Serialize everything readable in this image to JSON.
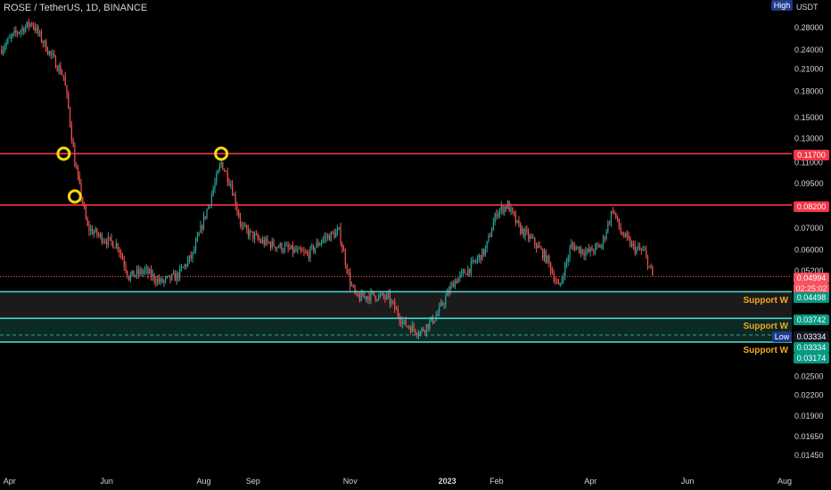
{
  "title": "ROSE / TetherUS, 1D, BINANCE",
  "price_axis": {
    "unit": "USDT",
    "high_badge": "High",
    "low_badge": "Low",
    "ticks": [
      "0.28000",
      "0.24000",
      "0.21000",
      "0.18000",
      "0.15000",
      "0.13000",
      "0.11000",
      "0.09500",
      "0.08200",
      "0.07000",
      "0.06000",
      "0.05200",
      "0.04498",
      "0.03742",
      "0.03334",
      "0.03174",
      "0.02500",
      "0.02200",
      "0.01900",
      "0.01650",
      "0.01450"
    ],
    "tags": {
      "resistance_upper": "0.11700",
      "resistance_lower": "0.08200",
      "last_price": "0.04994",
      "countdown": "02:25:02",
      "support_upper": "0.04498",
      "support_middle": "0.03742",
      "low": "0.03334",
      "low_green": "0.03334",
      "support_lower": "0.03174"
    }
  },
  "time_axis": {
    "ticks": [
      "Apr",
      "Jun",
      "Aug",
      "Sep",
      "Nov",
      "2023",
      "Feb",
      "Apr",
      "Jun",
      "Aug"
    ]
  },
  "zones": [
    "Support W",
    "Support W",
    "Support W"
  ],
  "colors": {
    "background": "#000000",
    "up_candle": "#26a69a",
    "down_candle": "#ef5350",
    "resistance_line": "#f23645",
    "support_line": "#4dd0c8",
    "highlight_circle": "#f5d90a",
    "zone_fill": "#1b1b1b",
    "zone_fill_green": "#0b2a23"
  },
  "chart_data": {
    "type": "candlestick",
    "title": "ROSE / TetherUS, 1D, BINANCE",
    "xlabel": "",
    "ylabel": "",
    "y_scale": "log",
    "ylim": [
      0.0135,
      0.33
    ],
    "x_ticks": [
      "Apr",
      "Jun",
      "Aug",
      "Sep",
      "Nov",
      "2023",
      "Feb",
      "Apr",
      "Jun",
      "Aug"
    ],
    "x_points": [
      "2022-03-26",
      "2022-04-05",
      "2022-04-15",
      "2022-04-25",
      "2022-05-05",
      "2022-05-08",
      "2022-05-12",
      "2022-05-20",
      "2022-05-30",
      "2022-06-08",
      "2022-06-15",
      "2022-06-25",
      "2022-07-05",
      "2022-07-15",
      "2022-07-25",
      "2022-08-05",
      "2022-08-12",
      "2022-08-18",
      "2022-08-25",
      "2022-09-05",
      "2022-09-15",
      "2022-09-25",
      "2022-10-05",
      "2022-10-15",
      "2022-10-25",
      "2022-11-01",
      "2022-11-05",
      "2022-11-15",
      "2022-11-25",
      "2022-12-05",
      "2022-12-15",
      "2022-12-25",
      "2023-01-05",
      "2023-01-15",
      "2023-01-25",
      "2023-02-01",
      "2023-02-08",
      "2023-02-15",
      "2023-02-25",
      "2023-03-05",
      "2023-03-12",
      "2023-03-20",
      "2023-03-30",
      "2023-04-08",
      "2023-04-15",
      "2023-04-20",
      "2023-04-28",
      "2023-05-05",
      "2023-05-10"
    ],
    "close_trace": [
      0.24,
      0.27,
      0.29,
      0.24,
      0.2,
      0.16,
      0.11,
      0.07,
      0.065,
      0.062,
      0.05,
      0.052,
      0.048,
      0.05,
      0.058,
      0.085,
      0.11,
      0.095,
      0.07,
      0.064,
      0.062,
      0.06,
      0.058,
      0.065,
      0.068,
      0.048,
      0.043,
      0.044,
      0.043,
      0.036,
      0.034,
      0.038,
      0.048,
      0.053,
      0.06,
      0.078,
      0.082,
      0.07,
      0.063,
      0.056,
      0.046,
      0.062,
      0.059,
      0.062,
      0.08,
      0.068,
      0.061,
      0.059,
      0.0499
    ],
    "horizontal_levels": [
      {
        "value": 0.117,
        "kind": "resistance"
      },
      {
        "value": 0.082,
        "kind": "resistance"
      },
      {
        "value": 0.04498,
        "kind": "support"
      },
      {
        "value": 0.03742,
        "kind": "support"
      },
      {
        "value": 0.03174,
        "kind": "support"
      }
    ],
    "zones": [
      {
        "label": "Support W",
        "from": 0.03742,
        "to": 0.04498
      },
      {
        "label": "Support W",
        "from": 0.03174,
        "to": 0.03742
      }
    ],
    "last_price": 0.04994,
    "low": 0.03334,
    "highlights": [
      {
        "x": "2022-05-05",
        "y": 0.117
      },
      {
        "x": "2022-05-12",
        "y": 0.087
      },
      {
        "x": "2022-08-12",
        "y": 0.117
      }
    ]
  }
}
